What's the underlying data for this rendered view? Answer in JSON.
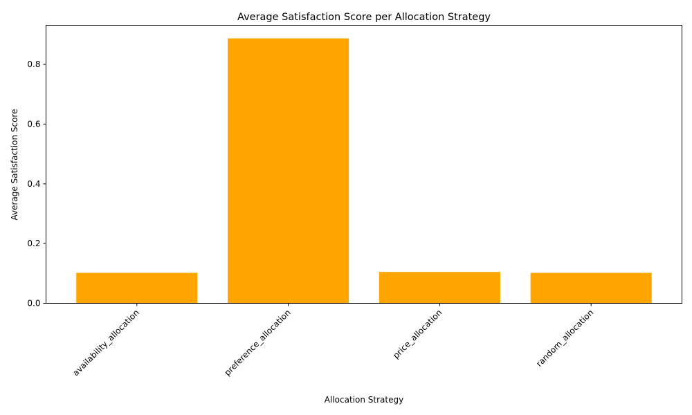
{
  "chart_data": {
    "type": "bar",
    "title": "Average Satisfaction Score per Allocation Strategy",
    "xlabel": "Allocation Strategy",
    "ylabel": "Average Satisfaction Score",
    "categories": [
      "availability_allocation",
      "preference_allocation",
      "price_allocation",
      "random_allocation"
    ],
    "values": [
      0.102,
      0.887,
      0.105,
      0.102
    ],
    "ylim": [
      0,
      0.931
    ],
    "yticks": [
      0.0,
      0.2,
      0.4,
      0.6,
      0.8
    ],
    "ytick_labels": [
      "0.0",
      "0.2",
      "0.4",
      "0.6",
      "0.8"
    ],
    "bar_color": "#ffa500",
    "grid": false,
    "legend": "none"
  }
}
